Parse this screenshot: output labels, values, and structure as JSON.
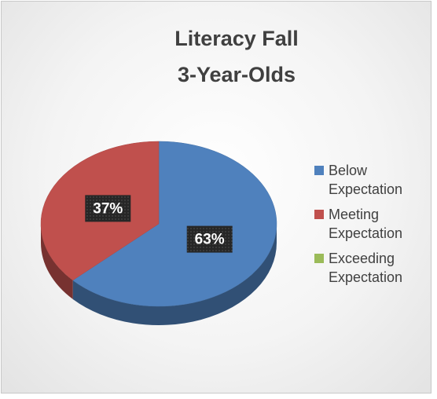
{
  "chart_data": {
    "type": "pie3d",
    "title": [
      "Literacy Fall",
      "3-Year-Olds"
    ],
    "categories": [
      "Below Expectation",
      "Meeting Expectation",
      "Exceeding Expectation"
    ],
    "values": [
      63,
      37,
      0
    ],
    "value_labels": [
      "63%",
      "37%",
      null
    ],
    "colors": [
      "#4f81bd",
      "#c0504d",
      "#9bbb59"
    ],
    "legend": "right"
  }
}
